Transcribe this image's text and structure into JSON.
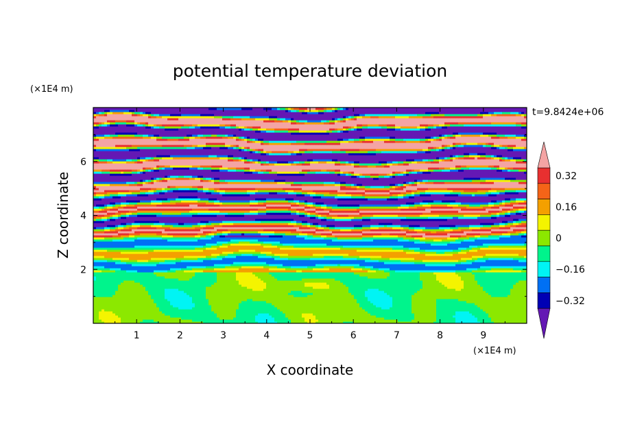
{
  "chart_data": {
    "type": "heatmap",
    "title": "potential temperature deviation",
    "xlabel": "X coordinate",
    "ylabel": "Z coordinate",
    "x_unit_label": "(×1E4 m)",
    "y_unit_label": "(×1E4 m)",
    "time_label": "t=9.8424e+06",
    "xlim": [
      0,
      10
    ],
    "ylim": [
      0,
      8
    ],
    "x_ticks": [
      "1",
      "2",
      "3",
      "4",
      "5",
      "6",
      "7",
      "8",
      "9"
    ],
    "y_ticks": [
      "2",
      "4",
      "6"
    ],
    "contour_levels": [
      -0.4,
      -0.32,
      -0.24,
      -0.16,
      -0.08,
      0,
      0.08,
      0.16,
      0.24,
      0.32,
      0.4
    ],
    "colorbar_labels": [
      "0.32",
      "0.16",
      "0",
      "−0.16",
      "−0.32"
    ],
    "colorbar_colors": [
      "#f4a4a4",
      "#e83030",
      "#f46418",
      "#f4a000",
      "#f4f400",
      "#8ce800",
      "#00f48c",
      "#00f4f4",
      "#0070f4",
      "#0000b4",
      "#6418b4"
    ],
    "colors": {
      "below_min": "#6418b4",
      "above_max": "#f4a4a4"
    },
    "layers": [
      {
        "z_range": [
          0,
          1.9
        ],
        "description": "lower layer dominated by -0.08..0.08 band with weak perturbations"
      },
      {
        "z_range": [
          1.9,
          8
        ],
        "description": "upper layer of horizontally stratified alternating positive/negative filaments"
      }
    ]
  }
}
